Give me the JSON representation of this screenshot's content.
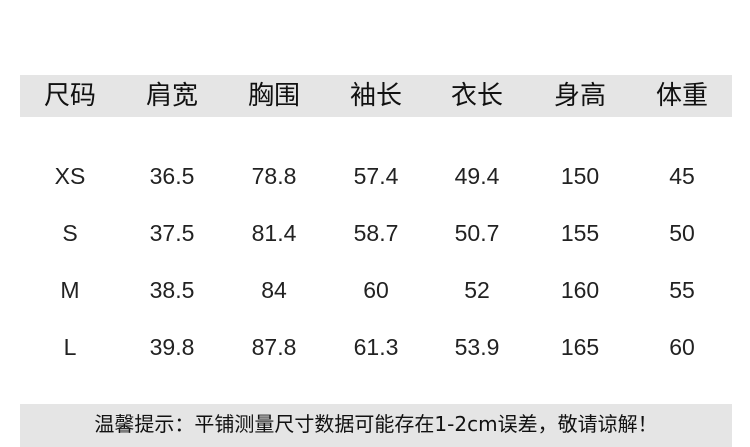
{
  "headers": [
    "尺码",
    "肩宽",
    "胸围",
    "袖长",
    "衣长",
    "身高",
    "体重"
  ],
  "rows": [
    [
      "XS",
      "36.5",
      "78.8",
      "57.4",
      "49.4",
      "150",
      "45"
    ],
    [
      "S",
      "37.5",
      "81.4",
      "58.7",
      "50.7",
      "155",
      "50"
    ],
    [
      "M",
      "38.5",
      "84",
      "60",
      "52",
      "160",
      "55"
    ],
    [
      "L",
      "39.8",
      "87.8",
      "61.3",
      "53.9",
      "165",
      "60"
    ]
  ],
  "note": "温馨提示：平铺测量尺寸数据可能存在1-2cm误差，敬请谅解！"
}
